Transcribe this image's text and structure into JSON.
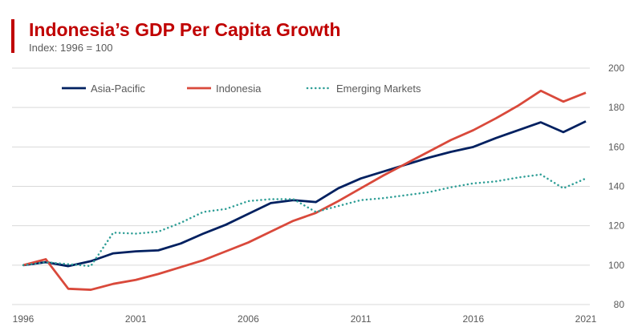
{
  "chart_data": {
    "type": "line",
    "title": "Indonesia’s GDP Per Capita Growth",
    "subtitle": "Index: 1996 = 100",
    "x": [
      1996,
      1997,
      1998,
      1999,
      2000,
      2001,
      2002,
      2003,
      2004,
      2005,
      2006,
      2007,
      2008,
      2009,
      2010,
      2011,
      2012,
      2013,
      2014,
      2015,
      2016,
      2017,
      2018,
      2019,
      2020,
      2021
    ],
    "xticks": [
      "1996",
      "2001",
      "2006",
      "2011",
      "2016",
      "2021"
    ],
    "yticks": [
      "80",
      "100",
      "120",
      "140",
      "160",
      "180",
      "200"
    ],
    "ylim": [
      80,
      200
    ],
    "xlim": [
      1996,
      2021
    ],
    "grid": true,
    "legend_position": "top-left",
    "y_axis_side": "right",
    "series": [
      {
        "name": "Asia-Pacific",
        "color": "#002060",
        "style": "solid",
        "values": [
          100,
          101.5,
          99.5,
          102,
          106,
          107,
          107.5,
          111,
          116,
          120.5,
          126,
          131.5,
          133,
          132,
          139,
          144,
          147.5,
          151,
          154.5,
          157.5,
          160,
          164.5,
          168.5,
          172.5,
          167.5,
          173
        ]
      },
      {
        "name": "Indonesia",
        "color": "#d9493b",
        "style": "solid",
        "values": [
          100,
          103,
          88,
          87.5,
          90.5,
          92.5,
          95.5,
          99,
          102.5,
          107,
          111.5,
          117,
          122.5,
          126.5,
          132.5,
          139,
          145.5,
          151.5,
          157.5,
          163.5,
          168.5,
          174.5,
          181,
          188.5,
          183,
          187.5
        ]
      },
      {
        "name": "Emerging Markets",
        "color": "#2e9e96",
        "style": "dotted",
        "values": [
          100,
          101.5,
          100.5,
          99.5,
          116.5,
          116,
          117,
          121.5,
          127,
          128.5,
          132.5,
          133.5,
          133.5,
          127,
          130,
          133,
          134,
          135.5,
          137,
          139.5,
          141.5,
          142.5,
          144.5,
          146,
          139,
          144
        ]
      }
    ]
  }
}
